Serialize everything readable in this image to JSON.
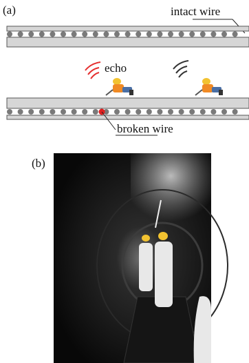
{
  "panel_a": {
    "label": "(a)",
    "intact_label": "intact wire",
    "echo_label": "echo",
    "broken_label": "broken wire"
  },
  "panel_b": {
    "label": "(b)"
  }
}
